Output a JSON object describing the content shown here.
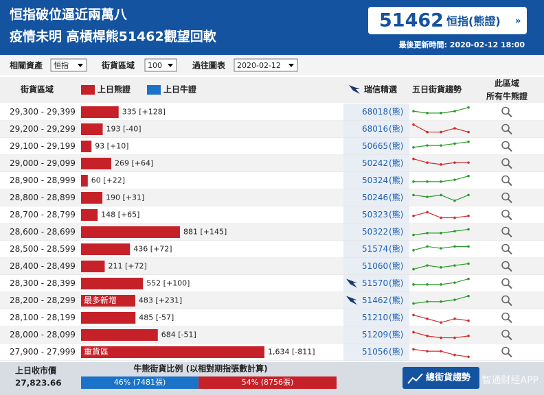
{
  "header": {
    "title_line1": "恒指破位逼近兩萬八",
    "title_line2": "疫情未明 高槓桿熊51462觀望回軟",
    "code": "51462",
    "code_name": "恒指(熊證)",
    "arrow": "»",
    "updated": "最後更新時間: 2020-02-12 18:00"
  },
  "filters": {
    "asset_label": "相關資產",
    "asset_value": "恒指",
    "range_label": "街貨區域",
    "range_value": "100",
    "history_label": "過往圖表",
    "history_value": "2020-02-12"
  },
  "columns": {
    "range": "街貨區域",
    "bear_legend": "上日熊證",
    "bear_color": "#c62128",
    "bull_legend": "上日牛證",
    "bull_color": "#1a73c8",
    "pick": "瑞信精選",
    "trend": "五日街貨趨勢",
    "all_line1": "此區域",
    "all_line2": "所有牛熊證"
  },
  "rows": [
    {
      "range": "29,300 - 29,399",
      "value": 335,
      "value_label": "335 [+128]",
      "code": "68018",
      "kind": "(熊)",
      "trend": [
        4,
        3,
        3,
        4,
        6
      ],
      "trend_color": "#2a9d2a"
    },
    {
      "range": "29,200 - 29,299",
      "value": 193,
      "value_label": "193 [-40]",
      "code": "68016",
      "kind": "(熊)",
      "trend": [
        6,
        2,
        2,
        4,
        2
      ],
      "trend_color": "#d42a2a"
    },
    {
      "range": "29,100 - 29,199",
      "value": 93,
      "value_label": "93 [+10]",
      "code": "50665",
      "kind": "(熊)",
      "trend": [
        3,
        4,
        4,
        5,
        6
      ],
      "trend_color": "#2a9d2a"
    },
    {
      "range": "29,000 - 29,099",
      "value": 269,
      "value_label": "269 [+64]",
      "code": "50242",
      "kind": "(熊)",
      "trend": [
        6,
        4,
        3,
        4,
        4
      ],
      "trend_color": "#d42a2a"
    },
    {
      "range": "28,900 - 28,999",
      "value": 60,
      "value_label": "60 [+22]",
      "code": "50324",
      "kind": "(熊)",
      "trend": [
        3,
        3,
        3,
        4,
        6
      ],
      "trend_color": "#2a9d2a"
    },
    {
      "range": "28,800 - 28,899",
      "value": 190,
      "value_label": "190 [+31]",
      "code": "50246",
      "kind": "(熊)",
      "trend": [
        5,
        4,
        5,
        2,
        5
      ],
      "trend_color": "#2a9d2a"
    },
    {
      "range": "28,700 - 28,799",
      "value": 148,
      "value_label": "148 [+65]",
      "code": "50323",
      "kind": "(熊)",
      "trend": [
        3,
        5,
        2,
        2,
        3
      ],
      "trend_color": "#d42a2a"
    },
    {
      "range": "28,600 - 28,699",
      "value": 881,
      "value_label": "881 [+145]",
      "code": "50322",
      "kind": "(熊)",
      "trend": [
        2,
        3,
        3,
        4,
        5
      ],
      "trend_color": "#2a9d2a"
    },
    {
      "range": "28,500 - 28,599",
      "value": 436,
      "value_label": "436 [+72]",
      "code": "51574",
      "kind": "(熊)",
      "trend": [
        3,
        5,
        4,
        5,
        5
      ],
      "trend_color": "#2a9d2a"
    },
    {
      "range": "28,400 - 28,499",
      "value": 211,
      "value_label": "211 [+72]",
      "code": "51060",
      "kind": "(熊)",
      "trend": [
        2,
        4,
        3,
        4,
        5
      ],
      "trend_color": "#2a9d2a"
    },
    {
      "range": "28,300 - 28,399",
      "value": 552,
      "value_label": "552 [+100]",
      "code": "51570",
      "kind": "(熊)",
      "pick": true,
      "trend": [
        3,
        3,
        3,
        4,
        6
      ],
      "trend_color": "#2a9d2a"
    },
    {
      "range": "28,200 - 28,299",
      "value": 483,
      "value_label": "483 [+231]",
      "bar_label": "最多新增",
      "code": "51462",
      "kind": "(熊)",
      "pick": true,
      "trend": [
        2,
        3,
        3,
        4,
        6
      ],
      "trend_color": "#2a9d2a"
    },
    {
      "range": "28,100 - 28,199",
      "value": 485,
      "value_label": "485 [-57]",
      "code": "51210",
      "kind": "(熊)",
      "trend": [
        5,
        3,
        1,
        3,
        2
      ],
      "trend_color": "#d42a2a"
    },
    {
      "range": "28,000 - 28,099",
      "value": 684,
      "value_label": "684 [-51]",
      "code": "51209",
      "kind": "(熊)",
      "trend": [
        5,
        3,
        2,
        2,
        3
      ],
      "trend_color": "#d42a2a"
    },
    {
      "range": "27,900 - 27,999",
      "value": 1634,
      "value_label": "1,634 [-811]",
      "bar_label": "重貨區",
      "code": "51056",
      "kind": "(熊)",
      "trend": [
        5,
        4,
        4,
        2,
        1
      ],
      "trend_color": "#d42a2a"
    }
  ],
  "footer": {
    "close_label": "上日收市價",
    "close_value": "27,823.66",
    "ratio_title": "牛熊街貨比例 (以相對期指張數計算)",
    "bull_pct": 46,
    "bull_label": "46% (7481張)",
    "bear_pct": 54,
    "bear_label": "54% (8756張)",
    "button": "總街貨趨勢",
    "watermark": "智通财经APP"
  }
}
